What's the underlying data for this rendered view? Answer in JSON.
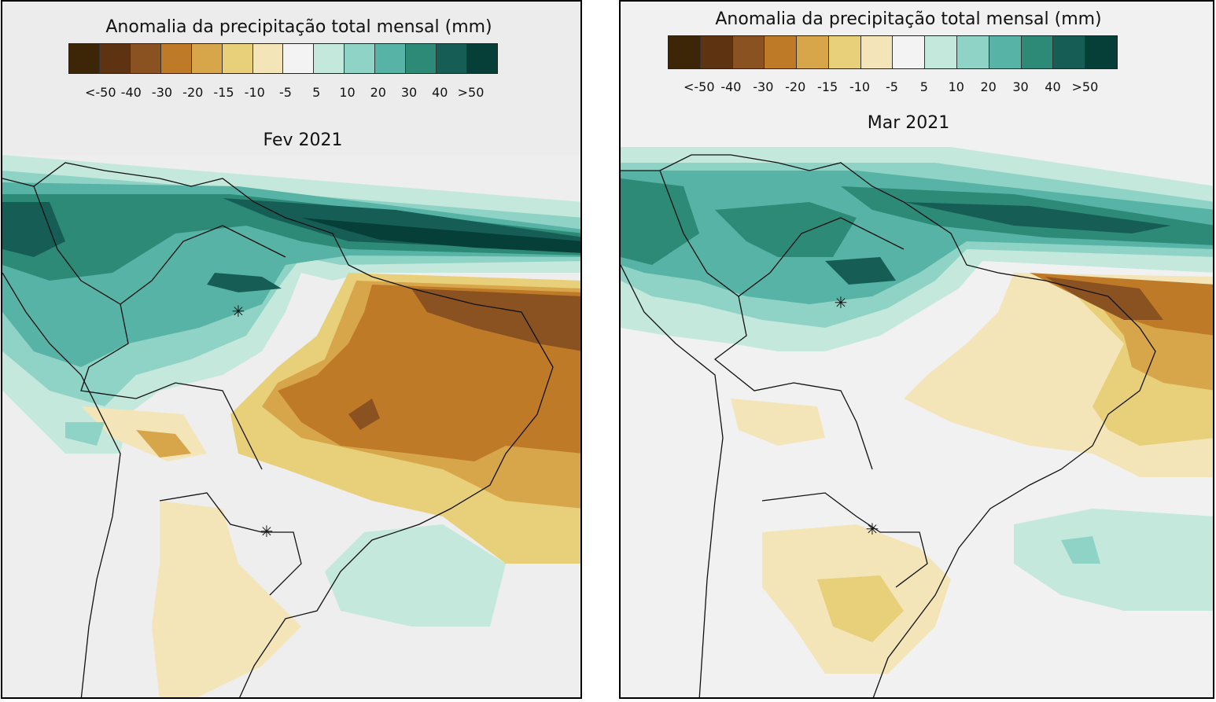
{
  "colorbar": {
    "title": "Anomalia da precipitação total mensal (mm)",
    "ticks": [
      "<-50",
      "-40",
      "-30",
      "-20",
      "-15",
      "-10",
      "-5",
      "5",
      "10",
      "20",
      "30",
      "40",
      ">50"
    ],
    "colors": [
      "#3d2508",
      "#5e3312",
      "#8a5221",
      "#bf7a28",
      "#d7a64a",
      "#e8d07a",
      "#f3e5b8",
      "#f3f3f3",
      "#c4e9dc",
      "#8fd3c6",
      "#56b3a6",
      "#2c8a77",
      "#165e55",
      "#063f37"
    ]
  },
  "panels": [
    {
      "title": "Fev 2021"
    },
    {
      "title": "Mar 2021"
    }
  ]
}
